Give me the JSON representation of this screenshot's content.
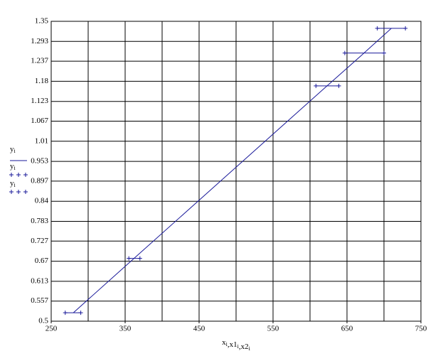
{
  "chart_data": {
    "type": "line",
    "x_label": [
      {
        "text": "x",
        "sub": "i"
      },
      {
        "text": ",x1",
        "sub": "i"
      },
      {
        "text": ",x2",
        "sub": "i"
      }
    ],
    "x": [
      280,
      362,
      623,
      673,
      710
    ],
    "series": [
      {
        "name": "y",
        "sub": "i",
        "style": "line",
        "color": "#1a1a9a",
        "x": [
          280,
          362,
          623,
          673,
          710
        ],
        "values": [
          0.524,
          0.678,
          1.167,
          1.26,
          1.33
        ]
      },
      {
        "name": "y",
        "sub": "i",
        "style": "points",
        "color": "#1a1a9a",
        "x": [
          269,
          355,
          608,
          647,
          691
        ],
        "values": [
          0.524,
          0.678,
          1.167,
          1.26,
          1.33
        ]
      },
      {
        "name": "y",
        "sub": "i",
        "style": "points",
        "color": "#1a1a9a",
        "x": [
          290,
          370,
          639,
          700,
          729
        ],
        "values": [
          0.524,
          0.678,
          1.167,
          1.26,
          1.33
        ]
      }
    ],
    "xlim": [
      250,
      750
    ],
    "xticks": [
      250,
      350,
      450,
      550,
      650,
      750
    ],
    "xgrid_step": 50,
    "ylim": [
      0.5,
      1.35
    ],
    "yticks": [
      0.5,
      0.557,
      0.613,
      0.67,
      0.727,
      0.783,
      0.84,
      0.897,
      0.953,
      1.01,
      1.067,
      1.123,
      1.18,
      1.237,
      1.293,
      1.35
    ],
    "grid": true
  }
}
